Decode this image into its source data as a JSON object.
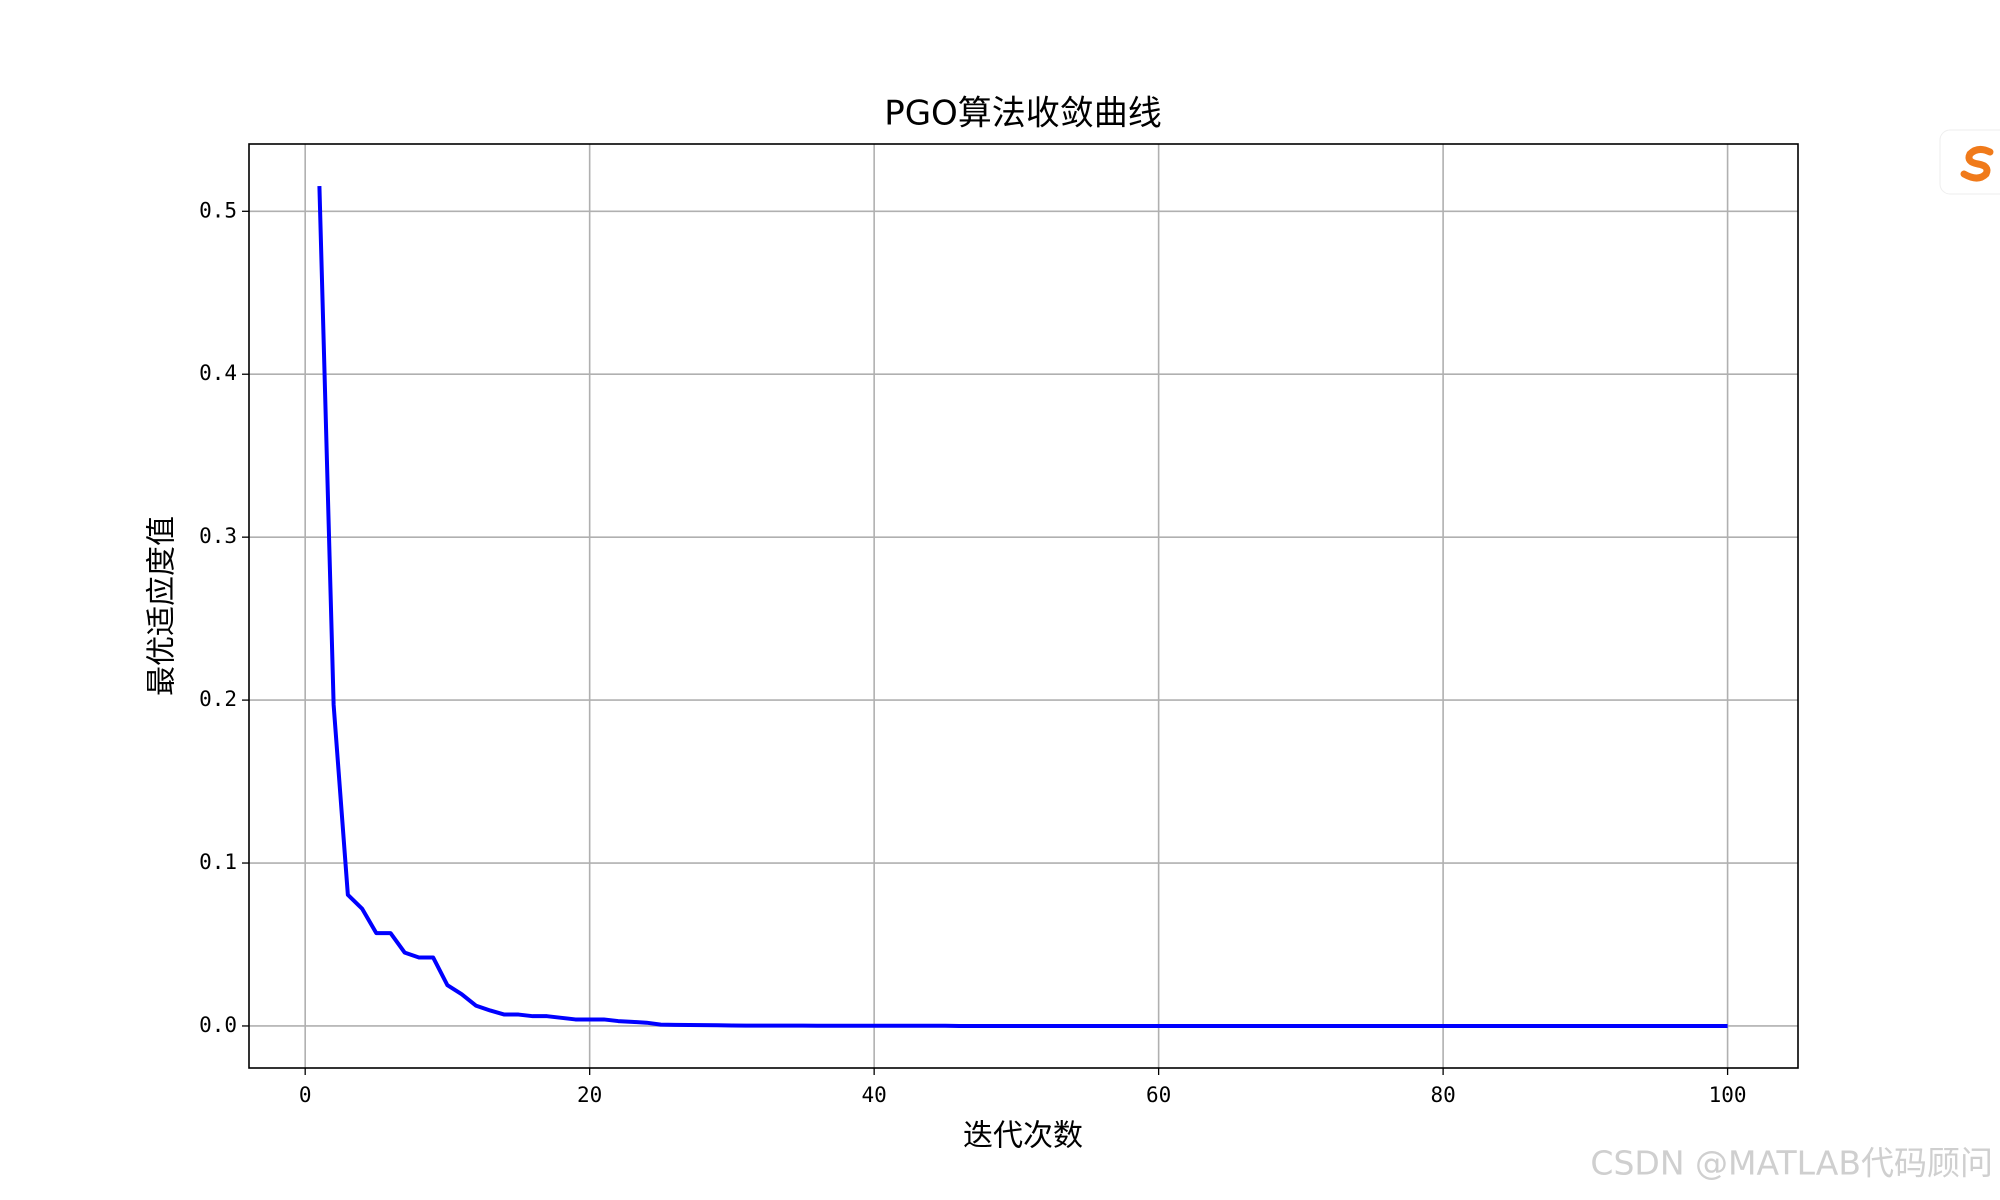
{
  "chart_data": {
    "type": "line",
    "title": "PGO算法收敛曲线",
    "x_label": "迭代次数",
    "y_label": "最优适应度值",
    "x": [
      1,
      2,
      3,
      4,
      5,
      6,
      7,
      8,
      9,
      10,
      11,
      12,
      13,
      14,
      15,
      16,
      17,
      18,
      19,
      20,
      21,
      22,
      23,
      24,
      25,
      26,
      27,
      28,
      29,
      30,
      31,
      32,
      33,
      34,
      35,
      36,
      37,
      38,
      39,
      40,
      41,
      42,
      43,
      44,
      45,
      46,
      47,
      48,
      49,
      50,
      51,
      52,
      53,
      54,
      55,
      56,
      57,
      58,
      59,
      60,
      61,
      62,
      63,
      64,
      65,
      66,
      67,
      68,
      69,
      70,
      71,
      72,
      73,
      74,
      75,
      76,
      77,
      78,
      79,
      80,
      81,
      82,
      83,
      84,
      85,
      86,
      87,
      88,
      89,
      90,
      91,
      92,
      93,
      94,
      95,
      96,
      97,
      98,
      99,
      100
    ],
    "values": [
      0.5155,
      0.197,
      0.0805,
      0.072,
      0.057,
      0.057,
      0.045,
      0.042,
      0.042,
      0.025,
      0.0195,
      0.0125,
      0.0095,
      0.007,
      0.007,
      0.006,
      0.006,
      0.005,
      0.004,
      0.004,
      0.004,
      0.003,
      0.0025,
      0.002,
      0.0008,
      0.0007,
      0.0006,
      0.0005,
      0.0004,
      0.0003,
      0.0002,
      0.0002,
      0.0002,
      0.0002,
      0.0002,
      0.0001,
      0.0001,
      0.0001,
      0.0001,
      0.0001,
      0.0001,
      0.0001,
      0.0001,
      0.0001,
      0.0001,
      0,
      0,
      0,
      0,
      0,
      0,
      0,
      0,
      0,
      0,
      0,
      0,
      0,
      0,
      0,
      0,
      0,
      0,
      0,
      0,
      0,
      0,
      0,
      0,
      0,
      0,
      0,
      0,
      0,
      0,
      0,
      0,
      0,
      0,
      0,
      0,
      0,
      0,
      0,
      0,
      0,
      0,
      0,
      0,
      0,
      0,
      0,
      0,
      0,
      0,
      0,
      0,
      0,
      0,
      0
    ],
    "color": "#0000ff",
    "xlim": [
      -3.95,
      104.95
    ],
    "xticks": [
      0,
      20,
      40,
      60,
      80,
      100
    ],
    "ylim": [
      -0.0258,
      0.5413
    ],
    "yticks": [
      {
        "value": 0,
        "label": "0.0"
      },
      0.1,
      0.2,
      0.3,
      0.4,
      0.5
    ],
    "grid": true
  },
  "watermark": "CSDN @MATLAB代码顾问"
}
